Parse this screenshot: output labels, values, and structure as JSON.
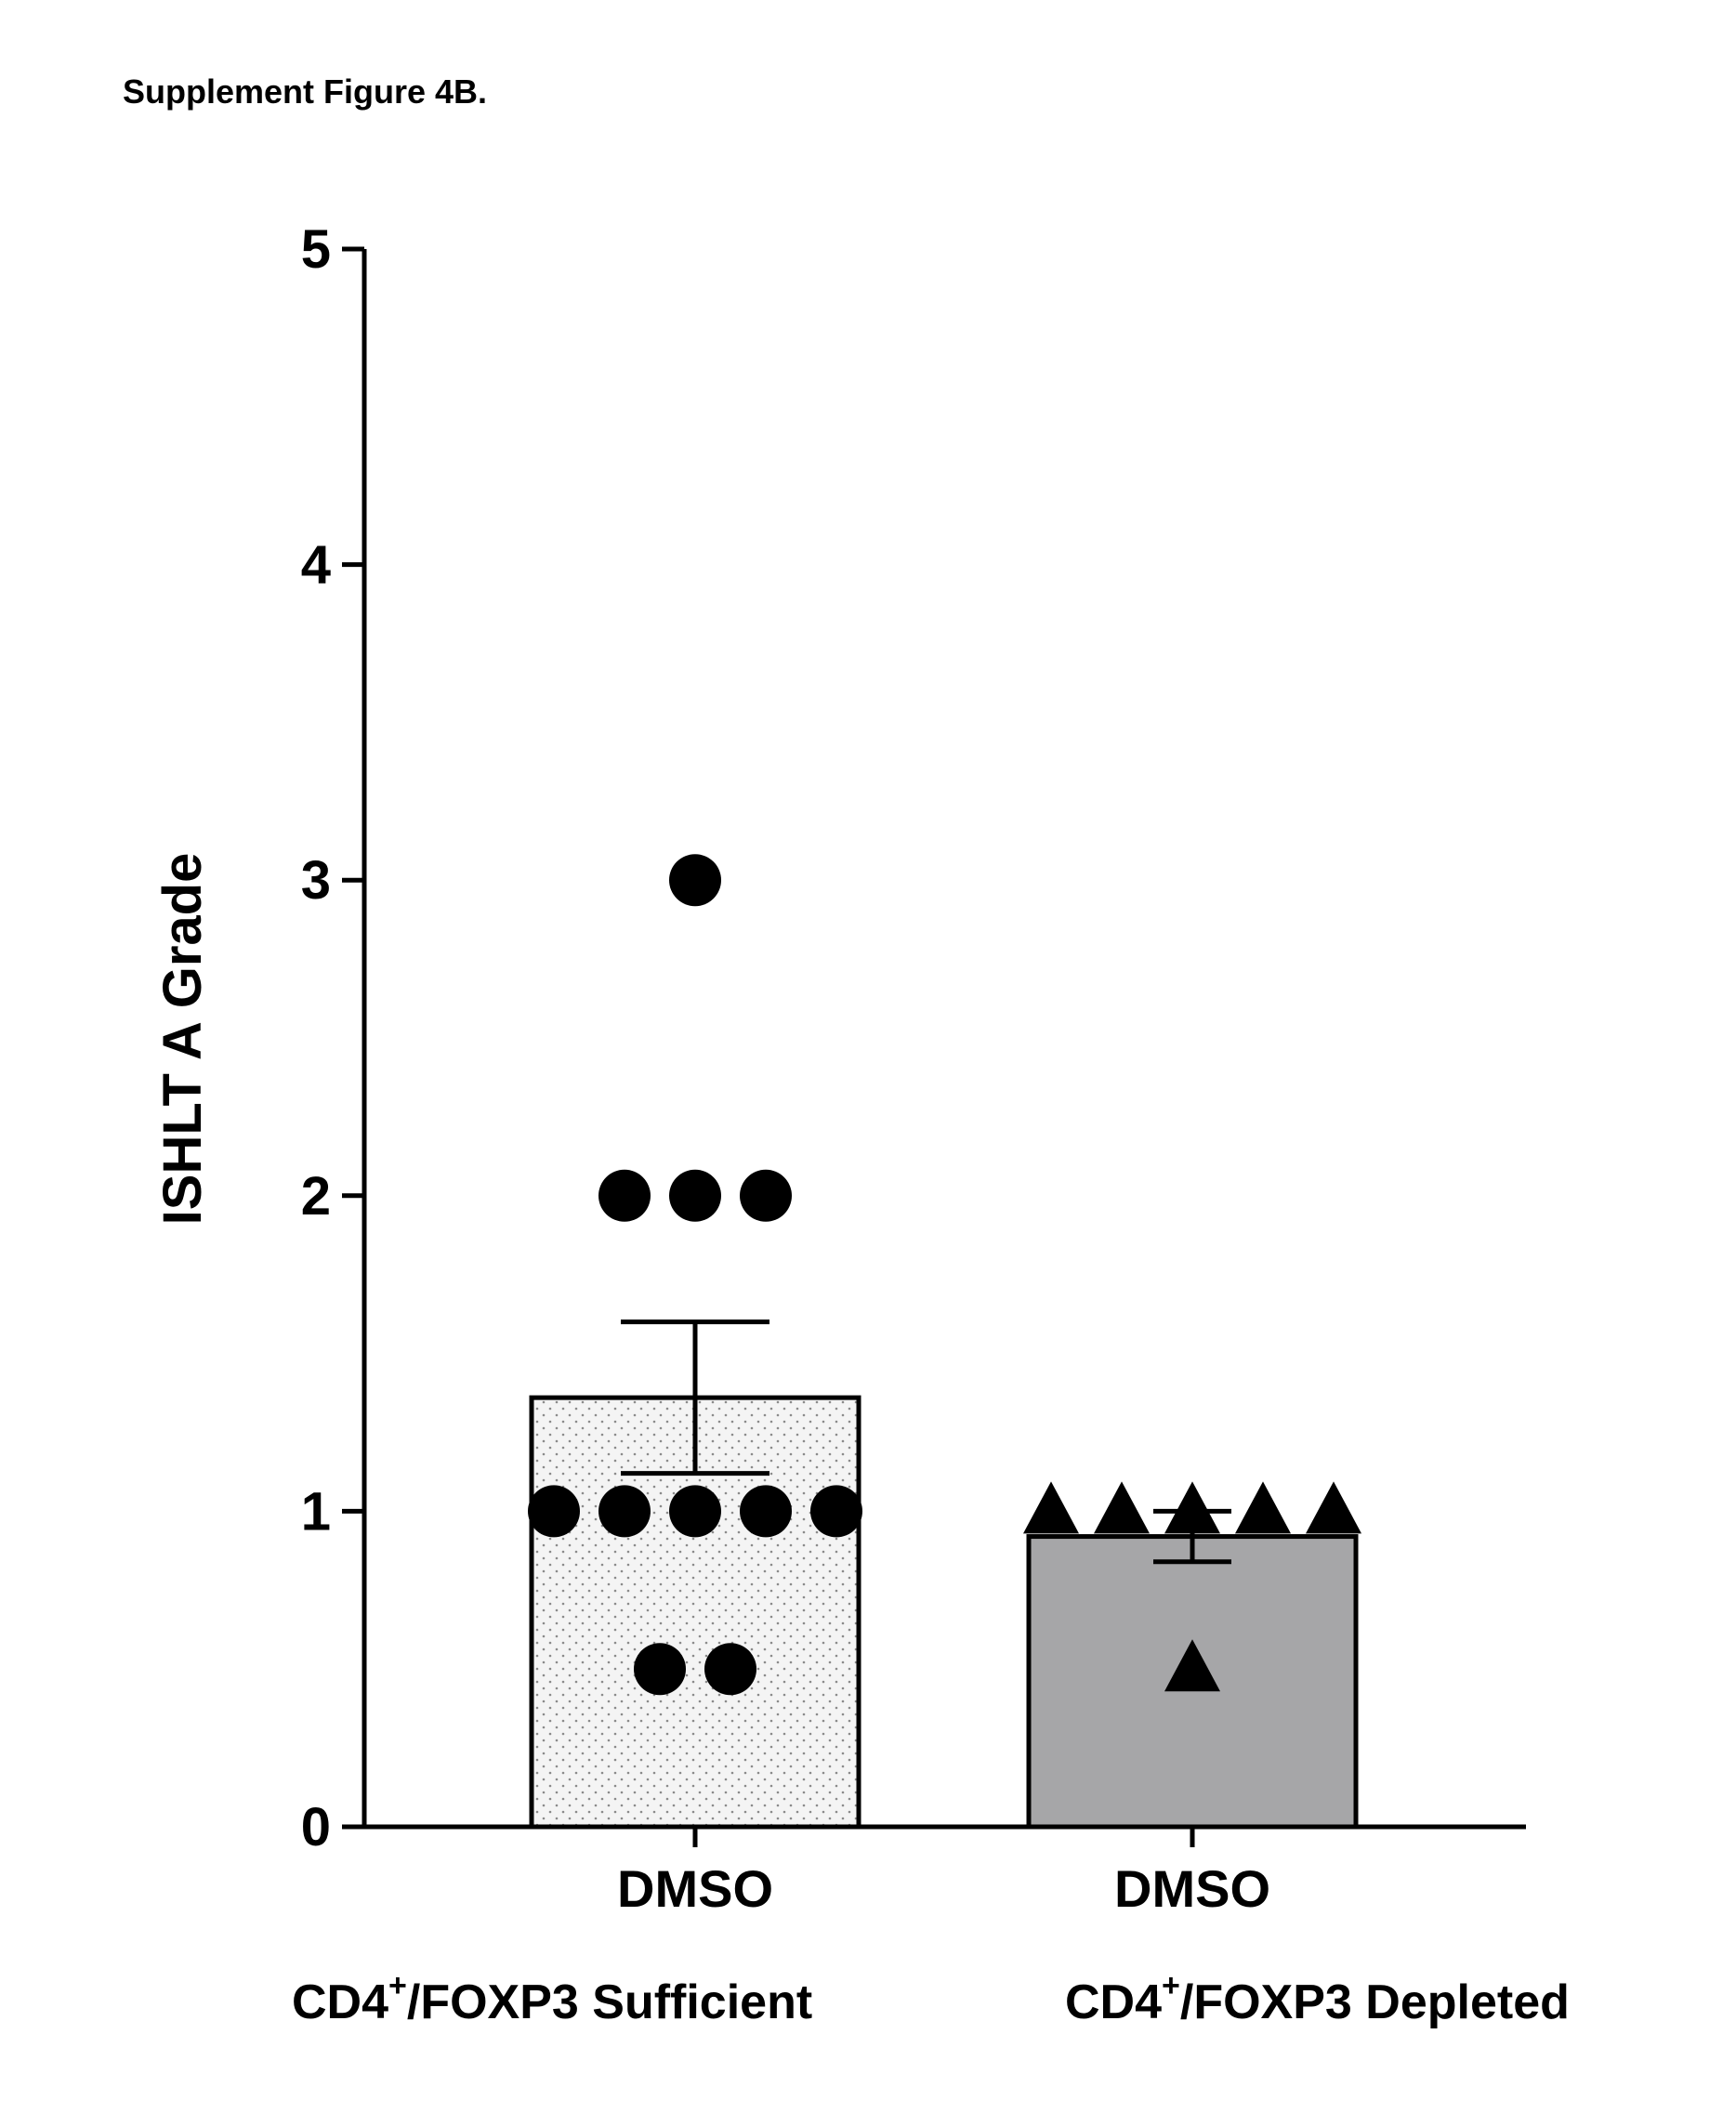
{
  "figure_title": "Supplement Figure 4B.",
  "chart_data": {
    "type": "bar",
    "title": "",
    "ylabel": "ISHLT  A Grade",
    "xlabel": "",
    "ylim": [
      0,
      5
    ],
    "yticks": [
      0,
      1,
      2,
      3,
      4,
      5
    ],
    "categories": [
      "DMSO",
      "DMSO"
    ],
    "groups": [
      {
        "prefix": "CD4",
        "sup": "+",
        "suffix": "/FOXP3 Sufficient"
      },
      {
        "prefix": "CD4",
        "sup": "+",
        "suffix": "/FOXP3 Depleted"
      }
    ],
    "series": [
      {
        "category_index": 0,
        "mean": 1.36,
        "sem": 0.24,
        "marker": "circle",
        "points": [
          3,
          2,
          2,
          2,
          1,
          1,
          1,
          1,
          1,
          0.5,
          0.5
        ],
        "fill": "#f2f2f2",
        "pattern": "dots"
      },
      {
        "category_index": 1,
        "mean": 0.92,
        "sem": 0.08,
        "marker": "triangle",
        "points": [
          1,
          1,
          1,
          1,
          1,
          0.5
        ],
        "fill": "#a6a6a8",
        "pattern": "none"
      }
    ]
  }
}
